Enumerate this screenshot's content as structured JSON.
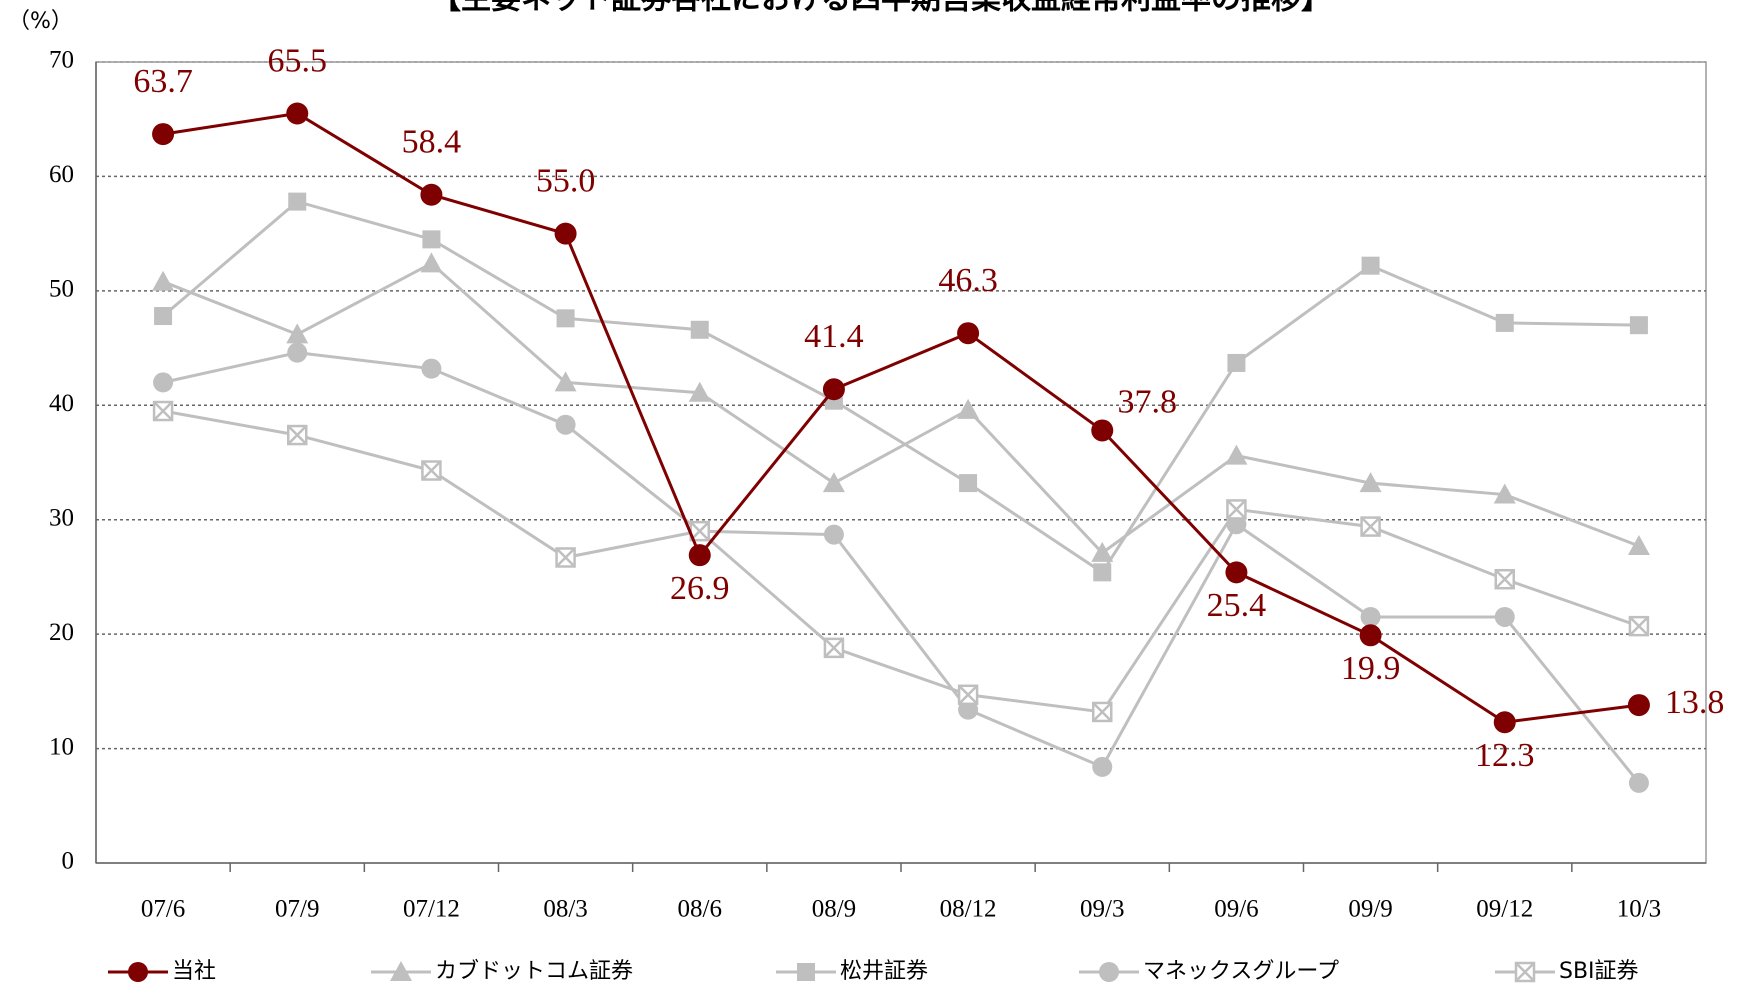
{
  "chart_data": {
    "type": "line",
    "title": "【主要ネット証券各社における四半期営業収益経常利益率の推移】",
    "y_label": "（%）",
    "categories": [
      "07/6",
      "07/9",
      "07/12",
      "08/3",
      "08/6",
      "08/9",
      "08/12",
      "09/3",
      "09/6",
      "09/9",
      "09/12",
      "10/3"
    ],
    "ylim": [
      0,
      70
    ],
    "yticks": [
      0,
      10,
      20,
      30,
      40,
      50,
      60,
      70
    ],
    "grid": true,
    "legend": "bottom",
    "series": [
      {
        "name": "当社",
        "color": "#7f0000",
        "marker": "circle",
        "values": [
          63.7,
          65.5,
          58.4,
          55.0,
          26.9,
          41.4,
          46.3,
          37.8,
          25.4,
          19.9,
          12.3,
          13.8
        ],
        "value_labels": [
          "63.7",
          "65.5",
          "58.4",
          "55.0",
          "26.9",
          "41.4",
          "46.3",
          "37.8",
          "25.4",
          "19.9",
          "12.3",
          "13.8"
        ]
      },
      {
        "name": "カブドットコム証券",
        "color": "#bfbfbf",
        "marker": "triangle",
        "values": [
          50.8,
          46.2,
          52.4,
          42.0,
          41.1,
          33.2,
          39.6,
          27.1,
          35.6,
          33.2,
          32.2,
          27.7
        ]
      },
      {
        "name": "松井証券",
        "color": "#bfbfbf",
        "marker": "square",
        "values": [
          47.8,
          57.8,
          54.5,
          47.6,
          46.6,
          40.4,
          33.2,
          25.4,
          43.7,
          52.2,
          47.2,
          47.0
        ]
      },
      {
        "name": "マネックスグループ",
        "color": "#bfbfbf",
        "marker": "circle",
        "values": [
          42.0,
          44.6,
          43.2,
          38.3,
          29.0,
          28.7,
          13.4,
          8.4,
          29.6,
          21.5,
          21.5,
          7.0
        ]
      },
      {
        "name": "SBI証券",
        "color": "#bfbfbf",
        "marker": "xsquare",
        "values": [
          39.5,
          37.4,
          34.3,
          26.7,
          29.0,
          18.8,
          14.7,
          13.2,
          30.9,
          29.4,
          24.8,
          20.7
        ]
      }
    ]
  }
}
